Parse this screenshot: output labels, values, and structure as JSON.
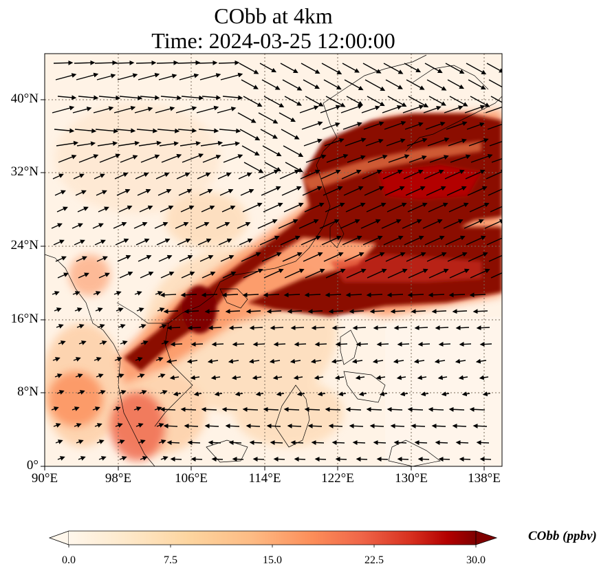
{
  "figure": {
    "title_line1": "CObb at 4km",
    "title_line2": "Time: 2024-03-25 12:00:00"
  },
  "map": {
    "lon_range": [
      90,
      140
    ],
    "lat_range": [
      0,
      45
    ],
    "gridlines": true,
    "x_ticks": [
      "90°E",
      "98°E",
      "106°E",
      "114°E",
      "122°E",
      "130°E",
      "138°E"
    ],
    "y_ticks": [
      "40°N",
      "32°N",
      "24°N",
      "16°N",
      "8°N",
      "0°"
    ],
    "field": "CObb concentration with wind vectors",
    "colors": {
      "low": "#fff5eb",
      "mid": "#fd8d3c",
      "high": "#7f0000"
    }
  },
  "colorbar": {
    "label": "CObb (ppbv)",
    "ticks": [
      "0.0",
      "7.5",
      "15.0",
      "22.5",
      "30.0"
    ],
    "range": [
      0,
      30
    ],
    "extend": "both",
    "colormap": "OrRd"
  }
}
